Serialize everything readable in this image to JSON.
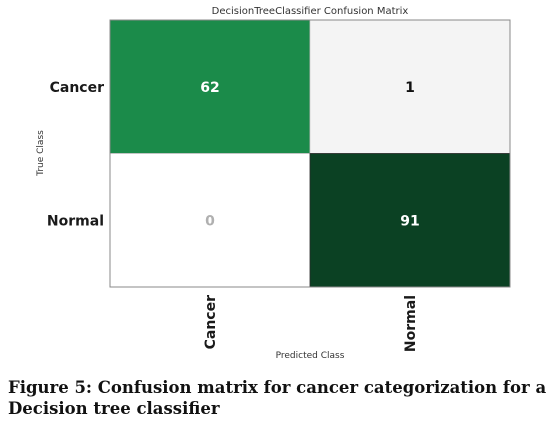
{
  "chart_data": {
    "type": "heatmap",
    "title": "DecisionTreeClassifier Confusion Matrix",
    "xlabel": "Predicted Class",
    "ylabel": "True Class",
    "rows": [
      "Cancer",
      "Normal"
    ],
    "columns": [
      "Cancer",
      "Normal"
    ],
    "values": [
      [
        62,
        1
      ],
      [
        0,
        91
      ]
    ],
    "value_labels": [
      [
        "62",
        "1"
      ],
      [
        "0",
        "91"
      ]
    ],
    "colormap": "Greens",
    "colors": {
      "diagonal_low": "#1b8b4a",
      "diagonal_high": "#0b4123",
      "off_diagonal_one": "#f4f4f4",
      "off_diagonal_zero": "#ffffff",
      "zero_text": "#b0b0b0",
      "light_text": "#ffffff",
      "dark_text": "#111111"
    },
    "grid": false,
    "legend": "none"
  },
  "caption": "Figure 5: Confusion matrix for cancer categorization for a Decision tree classifier"
}
